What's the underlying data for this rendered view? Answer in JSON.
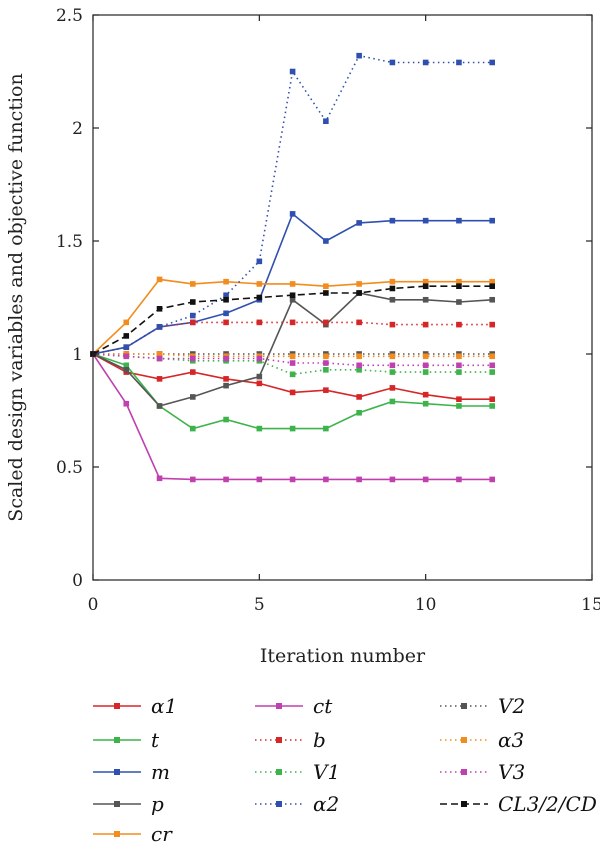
{
  "chart_data": {
    "type": "line",
    "xlabel": "Iteration number",
    "ylabel": "Scaled design variables and objective function",
    "xlim": [
      0,
      15
    ],
    "ylim": [
      0,
      2.5
    ],
    "xticks": [
      0,
      5,
      10,
      15
    ],
    "yticks": [
      0,
      0.5,
      1,
      1.5,
      2,
      2.5
    ],
    "ytick_labels": [
      "0",
      "0.5",
      "1",
      "1.5",
      "2",
      "2.5"
    ],
    "grid": false,
    "legend_position": "bottom",
    "x": [
      0,
      1,
      2,
      3,
      4,
      5,
      6,
      7,
      8,
      9,
      10,
      11,
      12
    ],
    "series": [
      {
        "name": "α1",
        "color": "#d62728",
        "style": "solid",
        "values": [
          1.0,
          0.92,
          0.89,
          0.92,
          0.89,
          0.87,
          0.83,
          0.84,
          0.81,
          0.85,
          0.82,
          0.8,
          0.8
        ]
      },
      {
        "name": "t",
        "color": "#3cb44b",
        "style": "solid",
        "values": [
          1.0,
          0.95,
          0.77,
          0.67,
          0.71,
          0.67,
          0.67,
          0.67,
          0.74,
          0.79,
          0.78,
          0.77,
          0.77
        ]
      },
      {
        "name": "m",
        "color": "#3050b0",
        "style": "solid",
        "values": [
          1.0,
          1.03,
          1.12,
          1.14,
          1.18,
          1.24,
          1.62,
          1.5,
          1.58,
          1.59,
          1.59,
          1.59,
          1.59
        ]
      },
      {
        "name": "p",
        "color": "#555555",
        "style": "solid",
        "values": [
          1.0,
          0.93,
          0.77,
          0.81,
          0.86,
          0.9,
          1.24,
          1.13,
          1.27,
          1.24,
          1.24,
          1.23,
          1.24
        ]
      },
      {
        "name": "cr",
        "color": "#f28c1e",
        "style": "solid",
        "values": [
          1.0,
          1.14,
          1.33,
          1.31,
          1.32,
          1.31,
          1.31,
          1.3,
          1.31,
          1.32,
          1.32,
          1.32,
          1.32
        ]
      },
      {
        "name": "ct",
        "color": "#c040b0",
        "style": "solid",
        "values": [
          1.0,
          0.78,
          0.45,
          0.445,
          0.445,
          0.445,
          0.445,
          0.445,
          0.445,
          0.445,
          0.445,
          0.445,
          0.445
        ]
      },
      {
        "name": "b",
        "color": "#d62728",
        "style": "dotted",
        "values": [
          1.0,
          1.03,
          1.12,
          1.14,
          1.14,
          1.14,
          1.14,
          1.14,
          1.14,
          1.13,
          1.13,
          1.13,
          1.13
        ]
      },
      {
        "name": "V1",
        "color": "#3cb44b",
        "style": "dotted",
        "values": [
          1.0,
          0.99,
          0.98,
          0.97,
          0.97,
          0.97,
          0.91,
          0.93,
          0.93,
          0.92,
          0.92,
          0.92,
          0.92
        ]
      },
      {
        "name": "α2",
        "color": "#3050b0",
        "style": "dotted",
        "values": [
          1.0,
          1.03,
          1.12,
          1.17,
          1.26,
          1.41,
          2.25,
          2.03,
          2.32,
          2.29,
          2.29,
          2.29,
          2.29
        ]
      },
      {
        "name": "V2",
        "color": "#555555",
        "style": "dotted",
        "values": [
          1.0,
          1.0,
          1.0,
          1.0,
          1.0,
          1.0,
          1.0,
          1.0,
          1.0,
          1.0,
          1.0,
          1.0,
          1.0
        ]
      },
      {
        "name": "α3",
        "color": "#f28c1e",
        "style": "dotted",
        "values": [
          1.0,
          1.0,
          1.0,
          0.99,
          0.99,
          0.99,
          0.99,
          0.99,
          0.99,
          0.99,
          0.99,
          0.99,
          0.99
        ]
      },
      {
        "name": "V3",
        "color": "#c040b0",
        "style": "dotted",
        "values": [
          1.0,
          0.99,
          0.98,
          0.98,
          0.98,
          0.98,
          0.96,
          0.96,
          0.95,
          0.95,
          0.95,
          0.95,
          0.95
        ]
      },
      {
        "name": "CL3/2/CD",
        "color": "#111111",
        "style": "dashed",
        "values": [
          1.0,
          1.08,
          1.2,
          1.23,
          1.24,
          1.25,
          1.26,
          1.27,
          1.27,
          1.29,
          1.3,
          1.3,
          1.3
        ]
      }
    ]
  }
}
